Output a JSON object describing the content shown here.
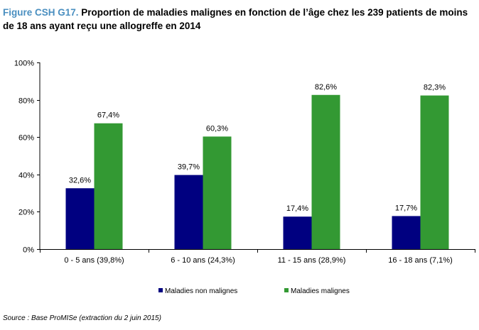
{
  "title": {
    "figure_label": "Figure CSH G17.",
    "text": "Proportion de maladies malignes en fonction de l’âge chez les 239 patients de moins de 18 ans ayant reçu une allogreffe en 2014"
  },
  "source": "Source : Base ProMISe (extraction du 2 juin 2015)",
  "chart_data": {
    "type": "bar",
    "categories": [
      "0 - 5 ans (39,8%)",
      "6 - 10 ans (24,3%)",
      "11 - 15 ans (28,9%)",
      "16 - 18 ans (7,1%)"
    ],
    "series": [
      {
        "name": "Maladies non malignes",
        "values": [
          32.6,
          39.7,
          17.4,
          17.7
        ],
        "labels": [
          "32,6%",
          "39,7%",
          "17,4%",
          "17,7%"
        ],
        "color": "#000080"
      },
      {
        "name": "Maladies malignes",
        "values": [
          67.4,
          60.3,
          82.6,
          82.3
        ],
        "labels": [
          "67,4%",
          "60,3%",
          "82,6%",
          "82,3%"
        ],
        "color": "#339933"
      }
    ],
    "ylim": [
      0,
      100
    ],
    "yticks": [
      0,
      20,
      40,
      60,
      80,
      100
    ],
    "ytick_labels": [
      "0%",
      "20%",
      "40%",
      "60%",
      "80%",
      "100%"
    ],
    "grid": false,
    "legend": "bottom"
  }
}
